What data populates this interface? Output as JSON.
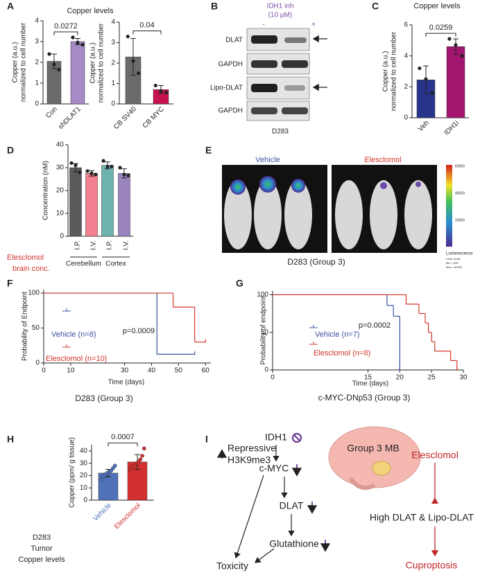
{
  "panel_labels": [
    "A",
    "B",
    "C",
    "D",
    "E",
    "F",
    "G",
    "H",
    "I"
  ],
  "chart_data": [
    {
      "type": "bar",
      "title": "Copper levels",
      "ylabel": [
        "Copper (a.u.)",
        "normalized to cell number"
      ],
      "categories": [
        "Con",
        "shDLAT1"
      ],
      "values": [
        2.05,
        3.0
      ],
      "errors": [
        0.35,
        0.15
      ],
      "points": [
        [
          2.4,
          1.9,
          1.65
        ],
        [
          3.2,
          2.95,
          2.85
        ]
      ],
      "colors": [
        "#6b6b6b",
        "#a68bc6"
      ],
      "ylim": [
        0,
        4
      ],
      "yticks": [
        0,
        1,
        2,
        3,
        4
      ],
      "annotation": "0.0272"
    },
    {
      "type": "bar",
      "ylabel": [
        "Copper (a.u.)",
        "normalized to cell number"
      ],
      "categories": [
        "CB SV40",
        "CB MYC"
      ],
      "values": [
        2.3,
        0.7
      ],
      "errors": [
        0.9,
        0.2
      ],
      "points": [
        [
          3.3,
          2.1,
          1.5
        ],
        [
          0.9,
          0.62,
          0.55
        ]
      ],
      "colors": [
        "#6b6b6b",
        "#c8124e"
      ],
      "ylim": [
        0,
        4
      ],
      "yticks": [
        0,
        1,
        2,
        3,
        4
      ],
      "annotation": "0.04"
    },
    {
      "type": "bar",
      "title": "Copper levels",
      "ylabel": [
        "Copper (a.u.)",
        "normalized to cell number"
      ],
      "categories": [
        "Veh",
        "IDH1i"
      ],
      "values": [
        2.45,
        4.6
      ],
      "errors": [
        0.9,
        0.5
      ],
      "points": [
        [
          3.2,
          2.5,
          1.6
        ],
        [
          5.1,
          4.7,
          4.0
        ]
      ],
      "colors": [
        "#27348b",
        "#a3166f"
      ],
      "ylim": [
        0,
        6
      ],
      "yticks": [
        0,
        2,
        4,
        6
      ],
      "annotation": "0.0259"
    },
    {
      "type": "bar",
      "ylabel": [
        "Concentration (nM)"
      ],
      "categories": [
        "I.P.",
        "I.V.",
        "I.P.",
        "I.V."
      ],
      "groups": [
        "Cerebellum",
        "Cortex"
      ],
      "side_label": [
        "Elesclomol",
        "brain conc."
      ],
      "side_label_color": "#d2352b",
      "values": [
        30,
        27.5,
        31,
        27.5
      ],
      "errors": [
        1.8,
        1.2,
        1.5,
        2.0
      ],
      "points": [
        [
          32,
          31,
          28
        ],
        [
          28.5,
          27.5,
          27
        ],
        [
          33,
          30.5,
          30.5
        ],
        [
          30,
          27,
          26.5
        ]
      ],
      "colors": [
        "#5a5a5a",
        "#f2808f",
        "#6fb3b0",
        "#9b85bf"
      ],
      "ylim": [
        0,
        40
      ],
      "yticks": [
        0,
        10,
        20,
        30,
        40
      ]
    },
    {
      "type": "survival",
      "subtitle": "D283 (Group 3)",
      "ylabel": "Probability of Endpoint",
      "xlabel": "Time (days)",
      "annotation": "p=0.0009",
      "xlim": [
        0,
        62
      ],
      "xticks": [
        0,
        10,
        30,
        40,
        50,
        60
      ],
      "ylim": [
        0,
        105
      ],
      "yticks": [
        0,
        50,
        100
      ],
      "series": [
        {
          "name": "Vehicle (n=8)",
          "color": "#3a4fa0",
          "x": [
            0,
            42,
            56
          ],
          "values": [
            100,
            12.5,
            12.5
          ]
        },
        {
          "name": "Elesclomol (n=10)",
          "color": "#d2352b",
          "x": [
            0,
            48,
            56,
            60
          ],
          "values": [
            100,
            80,
            30,
            30
          ]
        }
      ]
    },
    {
      "type": "survival",
      "subtitle": "c-MYC-DNp53 (Group 3)",
      "ylabel": "Probability of endpoint",
      "xlabel": "Time (days)",
      "annotation": "p=0.0002",
      "xlim": [
        0,
        30
      ],
      "xticks": [
        0,
        15,
        20,
        25,
        30
      ],
      "ylim": [
        0,
        105
      ],
      "yticks": [
        0,
        50,
        100
      ],
      "series": [
        {
          "name": "Vehicle (n=7)",
          "color": "#3a4fa0",
          "x": [
            0,
            18,
            19,
            20
          ],
          "values": [
            100,
            85.7,
            71.4,
            0
          ]
        },
        {
          "name": "Elesclomol (n=8)",
          "color": "#d2352b",
          "x": [
            0,
            21,
            23,
            24,
            24.5,
            25,
            25.5,
            28,
            29
          ],
          "values": [
            100,
            87.5,
            75,
            62.5,
            50,
            37.5,
            25,
            12.5,
            0
          ]
        }
      ]
    },
    {
      "type": "bar",
      "ylabel": [
        "Copper (ppm/ g tissue)"
      ],
      "side_label": [
        "D283",
        "Tumor",
        "Copper levels"
      ],
      "side_label_color": "#222222",
      "colored_categories": true,
      "categories": [
        "Vehicle",
        "Elesclomol"
      ],
      "values": [
        22,
        31
      ],
      "errors": [
        3,
        6
      ],
      "points": [
        [
          17,
          19,
          21,
          22,
          23,
          24,
          26,
          28
        ],
        [
          25,
          27,
          28,
          30,
          31,
          33,
          36,
          42
        ]
      ],
      "colors": [
        "#4f72b8",
        "#d22f2f"
      ],
      "ylim": [
        0,
        45
      ],
      "yticks": [
        0,
        10,
        20,
        30,
        40
      ],
      "annotation": "0.0007"
    }
  ],
  "blot": {
    "treatment": "IDH1 inh",
    "dose": "(10 µM)",
    "lanes": [
      "-",
      "+"
    ],
    "rows": [
      "DLAT",
      "GAPDH",
      "Lipo-DLAT",
      "GAPDH"
    ],
    "cell_line": "D283"
  },
  "imaging": {
    "groups": [
      "Vehicle",
      "Elesclomol"
    ],
    "caption": "D283 (Group 3)",
    "scale_ticks": [
      "60000",
      "40000",
      "20000"
    ],
    "scale_title": "Luminescence",
    "scale_notes": [
      "Color Scale",
      "Min = 600",
      "Max = 60000"
    ]
  },
  "diagram": {
    "nodes": [
      "IDH1",
      "c-MYC",
      "DLAT",
      "Glutathione",
      "Toxicity"
    ],
    "epigenetic": [
      "Repressive",
      "H3K9me3"
    ],
    "tumor": "Group 3 MB",
    "drug": "Elesclomol",
    "target": "High DLAT & Lipo-DLAT",
    "outcome": "Cuproptosis"
  }
}
